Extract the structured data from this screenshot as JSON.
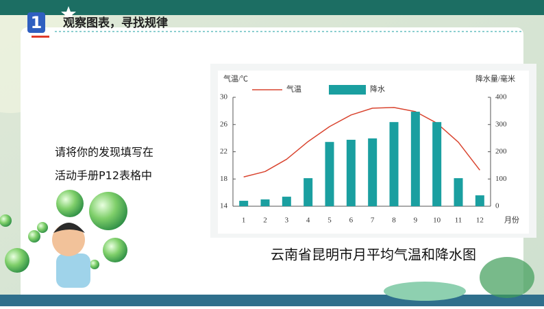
{
  "header": {
    "title": "观察图表，寻找规律"
  },
  "prompt": {
    "lines": [
      "请将你的发现填写在",
      "活动手册P12表格中"
    ]
  },
  "chart_data": {
    "type": "combo",
    "caption": "云南省昆明市月平均气温和降水图",
    "y_label": "气温/℃",
    "y2_label": "降水量/毫米",
    "x_label": "月份",
    "categories": [
      "1",
      "2",
      "3",
      "4",
      "5",
      "6",
      "7",
      "8",
      "9",
      "10",
      "11",
      "12"
    ],
    "series": [
      {
        "name": "气温",
        "type": "line",
        "color": "#d9442f",
        "axis": "y",
        "values": [
          18.3,
          19.1,
          20.9,
          23.5,
          25.7,
          27.4,
          28.4,
          28.5,
          27.9,
          26.2,
          23.4,
          19.3
        ]
      },
      {
        "name": "降水",
        "type": "bar",
        "color": "#1a9fa0",
        "axis": "y2",
        "values": [
          20,
          25,
          35,
          103,
          236,
          244,
          249,
          309,
          347,
          309,
          103,
          40
        ]
      }
    ],
    "ylim": [
      14,
      30
    ],
    "yticks": [
      14,
      18,
      22,
      26,
      30
    ],
    "y2lim": [
      0,
      400
    ],
    "y2ticks": [
      0,
      100,
      200,
      300,
      400
    ]
  }
}
